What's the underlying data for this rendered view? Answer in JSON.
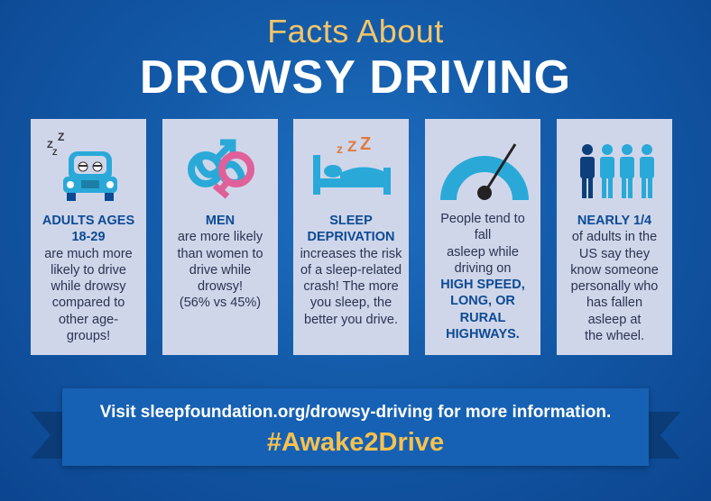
{
  "header": {
    "subtitle": "Facts About",
    "title": "DROWSY DRIVING"
  },
  "cards": [
    {
      "icon": "sleepy-car-icon",
      "lines": [
        "ADULTS AGES",
        "18-29",
        "are much more",
        "likely to drive",
        "while drowsy",
        "compared to",
        "other age-",
        "groups!"
      ]
    },
    {
      "icon": "gender-symbols-icon",
      "lines": [
        "MEN",
        "are more likely",
        "than women to",
        "drive while",
        "drowsy!",
        "(56% vs 45%)"
      ]
    },
    {
      "icon": "sleeping-bed-icon",
      "lines": [
        "SLEEP",
        "DEPRIVATION",
        "increases the risk",
        "of a sleep-related",
        "crash! The more",
        "you sleep, the",
        "better you drive."
      ]
    },
    {
      "icon": "speedometer-icon",
      "lines": [
        "People tend to fall",
        "asleep while",
        "driving on",
        "HIGH SPEED,",
        "LONG, OR RURAL",
        "HIGHWAYS."
      ]
    },
    {
      "icon": "people-group-icon",
      "lines": [
        "NEARLY 1/4",
        "of adults in the",
        "US say they",
        "know someone",
        "personally who",
        "has fallen",
        "asleep at",
        "the wheel."
      ]
    }
  ],
  "banner": {
    "visit_text": "Visit sleepfoundation.org/drowsy-driving for more information.",
    "hashtag": "#Awake2Drive"
  },
  "colors": {
    "background": "#135aa8",
    "card": "#cfd6ea",
    "highlight": "#0d4a93",
    "accent_gold": "#f3c56a",
    "icon_blue": "#2aa9d8",
    "icon_pink": "#e0609a"
  }
}
